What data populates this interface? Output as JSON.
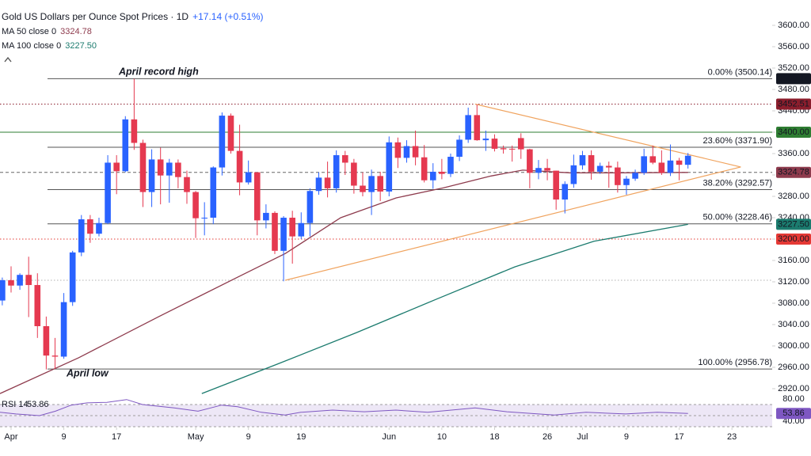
{
  "chart_data": [
    {
      "type": "candlestick",
      "title": "Gold US Dollars per Ounce Spot Prices · 1D",
      "subtitle": "+17.14 (+0.51%)",
      "annotations": [
        "April record high",
        "April low"
      ],
      "up_color": "#2962ff",
      "down_color": "#e53950",
      "xlim": [
        -1.26,
        86.58
      ],
      "ylim": [
        2909.6,
        3647.4
      ],
      "xticks": [
        {
          "value": 0,
          "label": "Apr"
        },
        {
          "value": 6,
          "label": "9"
        },
        {
          "value": 12,
          "label": "17"
        },
        {
          "value": 21,
          "label": "May"
        },
        {
          "value": 27,
          "label": "9"
        },
        {
          "value": 33,
          "label": "19"
        },
        {
          "value": 43,
          "label": "Jun"
        },
        {
          "value": 49,
          "label": "10"
        },
        {
          "value": 55,
          "label": "18"
        },
        {
          "value": 61,
          "label": "26"
        },
        {
          "value": 65,
          "label": "Jul"
        },
        {
          "value": 70,
          "label": "9"
        },
        {
          "value": 76,
          "label": "17"
        },
        {
          "value": 82,
          "label": "23"
        }
      ],
      "yticks": [
        {
          "value": 3600,
          "label": "3600.00"
        },
        {
          "value": 3560,
          "label": "3560.00"
        },
        {
          "value": 3520,
          "label": "3520.00"
        },
        {
          "value": 3480,
          "label": "3480.00"
        },
        {
          "value": 3440,
          "label": "3440.00"
        },
        {
          "value": 3400,
          "label": "3400.00"
        },
        {
          "value": 3360,
          "label": "3360.00"
        },
        {
          "value": 3320,
          "label": "3320.00"
        },
        {
          "value": 3280,
          "label": "3280.00"
        },
        {
          "value": 3240,
          "label": "3240.00"
        },
        {
          "value": 3200,
          "label": "3200.00"
        },
        {
          "value": 3160,
          "label": "3160.00"
        },
        {
          "value": 3120,
          "label": "3120.00"
        },
        {
          "value": 3080,
          "label": "3080.00"
        },
        {
          "value": 3040,
          "label": "3040.00"
        },
        {
          "value": 3000,
          "label": "3000.00"
        },
        {
          "value": 2960,
          "label": "2960.00"
        },
        {
          "value": 2920,
          "label": "2920.00"
        }
      ],
      "x": [
        -1,
        0,
        1,
        2,
        3,
        4,
        5,
        6,
        7,
        8,
        9,
        10,
        11,
        12,
        13,
        14,
        15,
        16,
        17,
        18,
        19,
        20,
        21,
        22,
        23,
        24,
        25,
        26,
        27,
        28,
        29,
        30,
        31,
        32,
        33,
        34,
        35,
        36,
        37,
        38,
        39,
        40,
        41,
        42,
        43,
        44,
        45,
        46,
        47,
        48,
        49,
        50,
        51,
        52,
        53,
        54,
        55,
        56,
        57,
        58,
        59,
        60,
        61,
        62,
        63,
        64,
        65,
        66,
        67,
        68,
        69,
        70,
        71,
        72,
        73,
        74,
        75,
        76,
        77
      ],
      "open": [
        3085,
        3123,
        3113,
        3133,
        3114,
        3037,
        2982,
        2980,
        3082,
        3175,
        3237,
        3210,
        3230,
        3343,
        3327,
        3424,
        3380,
        3288,
        3349,
        3319,
        3343,
        3316,
        3288,
        3239,
        3240,
        3334,
        3431,
        3365,
        3306,
        3325,
        3235,
        3249,
        3178,
        3240,
        3205,
        3230,
        3290,
        3315,
        3295,
        3357,
        3343,
        3300,
        3288,
        3318,
        3289,
        3381,
        3352,
        3374,
        3353,
        3310,
        3326,
        3322,
        3354,
        3386,
        3432,
        3385,
        3388,
        3370,
        3369,
        3389,
        3368,
        3324,
        3333,
        3328,
        3274,
        3303,
        3338,
        3357,
        3326,
        3337,
        3334,
        3301,
        3313,
        3324,
        3355,
        3343,
        3324,
        3347,
        3339
      ],
      "high": [
        3128,
        3149,
        3136,
        3167,
        3136,
        3055,
        3015,
        3099,
        3178,
        3245,
        3245,
        3240,
        3357,
        3357,
        3430,
        3500,
        3386,
        3368,
        3371,
        3350,
        3349,
        3328,
        3290,
        3269,
        3336,
        3437,
        3435,
        3414,
        3347,
        3325,
        3265,
        3252,
        3243,
        3253,
        3250,
        3295,
        3325,
        3345,
        3366,
        3365,
        3350,
        3325,
        3330,
        3326,
        3392,
        3390,
        3385,
        3403,
        3376,
        3342,
        3350,
        3360,
        3394,
        3446,
        3452,
        3403,
        3396,
        3375,
        3375,
        3398,
        3369,
        3348,
        3350,
        3328,
        3308,
        3358,
        3365,
        3366,
        3343,
        3345,
        3345,
        3318,
        3330,
        3369,
        3375,
        3366,
        3377,
        3352,
        3361
      ],
      "low": [
        3076,
        3100,
        3105,
        3054,
        3015,
        2956,
        2957,
        2976,
        3075,
        3168,
        3193,
        3205,
        3228,
        3284,
        3325,
        3367,
        3260,
        3260,
        3265,
        3268,
        3295,
        3266,
        3202,
        3207,
        3228,
        3319,
        3360,
        3282,
        3302,
        3207,
        3220,
        3172,
        3121,
        3154,
        3200,
        3205,
        3283,
        3278,
        3287,
        3320,
        3285,
        3280,
        3245,
        3271,
        3280,
        3333,
        3343,
        3338,
        3306,
        3294,
        3312,
        3316,
        3346,
        3380,
        3384,
        3365,
        3364,
        3360,
        3345,
        3350,
        3295,
        3312,
        3310,
        3255,
        3248,
        3296,
        3330,
        3311,
        3322,
        3296,
        3287,
        3283,
        3309,
        3320,
        3340,
        3320,
        3318,
        3310,
        3332
      ],
      "close": [
        3123,
        3113,
        3133,
        3114,
        3037,
        2982,
        2980,
        3082,
        3175,
        3237,
        3210,
        3230,
        3343,
        3327,
        3424,
        3380,
        3288,
        3349,
        3319,
        3343,
        3316,
        3288,
        3239,
        3240,
        3334,
        3431,
        3365,
        3306,
        3325,
        3235,
        3249,
        3178,
        3240,
        3205,
        3230,
        3290,
        3315,
        3295,
        3357,
        3343,
        3300,
        3288,
        3318,
        3289,
        3381,
        3352,
        3374,
        3353,
        3310,
        3326,
        3322,
        3354,
        3386,
        3432,
        3385,
        3388,
        3369,
        3368,
        3368,
        3368,
        3324,
        3333,
        3328,
        3274,
        3303,
        3338,
        3357,
        3326,
        3337,
        3334,
        3301,
        3313,
        3324,
        3355,
        3343,
        3324,
        3347,
        3339,
        3356
      ],
      "series": [
        {
          "name": "MA 50 close 0",
          "color": "#8e3b4d",
          "last": {
            "value": 3324.78,
            "label": "3324.78"
          },
          "x": [
            -1.26,
            7.7,
            16.8,
            25.8,
            31.2,
            37.5,
            43.8,
            49.2,
            54.6,
            58.2,
            63.6,
            69,
            77
          ],
          "values": [
            2911,
            2978,
            3055,
            3129,
            3173,
            3240,
            3277,
            3296,
            3318,
            3329,
            3324,
            3324,
            3324.78
          ]
        },
        {
          "name": "MA 100 close 0",
          "color": "#1b7b6e",
          "last": {
            "value": 3227.5,
            "label": "3227.50"
          },
          "x": [
            21.7,
            30.3,
            39.3,
            48.3,
            57.3,
            66.3,
            77
          ],
          "values": [
            2911,
            2966,
            3025,
            3087,
            3148,
            3196,
            3227.5
          ]
        }
      ],
      "fib_levels": [
        {
          "value": 3500.14,
          "label": "0.00% (3500.14)",
          "axis_box": true
        },
        {
          "value": 3371.9,
          "label": "23.60% (3371.90)"
        },
        {
          "value": 3292.57,
          "label": "38.20% (3292.57)"
        },
        {
          "value": 3228.46,
          "label": "50.00% (3228.46)"
        },
        {
          "value": 2956.78,
          "label": "100.00% (2956.78)"
        }
      ],
      "hlines": [
        {
          "value": 3452.51,
          "color": "#8b1e2d",
          "style": "dotted",
          "box": true
        },
        {
          "value": 3400,
          "label": "3400.00",
          "color": "#2e7d32",
          "style": "solid",
          "box": true
        },
        {
          "value": 3324.78,
          "color": "#666666",
          "style": "dashed"
        },
        {
          "value": 3200,
          "label": "3200.00",
          "color": "#e53935",
          "style": "dotted",
          "box": true
        },
        {
          "value": 3123,
          "color": "#b0b0b0",
          "style": "dotted"
        }
      ],
      "triangle": {
        "color": "#f0a35e",
        "x": [
          52.8,
          83,
          31.2
        ],
        "values": [
          3452.51,
          3335,
          3123
        ]
      }
    },
    {
      "type": "line",
      "title": "RSI 14",
      "color": "#7e57c2",
      "xlim": [
        -1.26,
        86.58
      ],
      "ylim": [
        28.6,
        85.7
      ],
      "yticks": [
        {
          "value": 80,
          "label": "80.00"
        },
        {
          "value": 40,
          "label": "40.00"
        }
      ],
      "band": [
        30,
        70
      ],
      "levels": [
        70,
        50,
        30
      ],
      "last": 53.86,
      "x": [
        -1.26,
        0.54,
        3.24,
        5.05,
        6.85,
        8.65,
        10.9,
        13.15,
        14.95,
        18.56,
        21.26,
        23.96,
        25.77,
        28.47,
        31.17,
        32.97,
        36.58,
        40.18,
        43.78,
        47.39,
        52.79,
        56.4,
        61.8,
        65.4,
        69.9,
        73.5,
        77
      ],
      "values": [
        56,
        53,
        50,
        58,
        69,
        73,
        74,
        79,
        70,
        64,
        58,
        69,
        66,
        56,
        51,
        56,
        60,
        57,
        60,
        56,
        64,
        57,
        51,
        56,
        53,
        56,
        53.86
      ]
    }
  ]
}
